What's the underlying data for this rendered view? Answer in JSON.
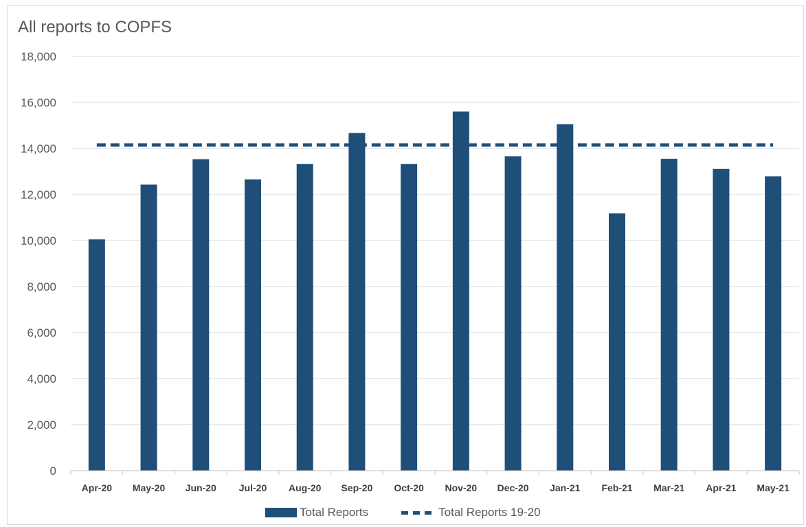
{
  "chart_data": {
    "type": "bar",
    "title": "All reports to COPFS",
    "xlabel": "",
    "ylabel": "",
    "categories": [
      "Apr-20",
      "May-20",
      "Jun-20",
      "Jul-20",
      "Aug-20",
      "Sep-20",
      "Oct-20",
      "Nov-20",
      "Dec-20",
      "Jan-21",
      "Feb-21",
      "Mar-21",
      "Apr-21",
      "May-21"
    ],
    "series": [
      {
        "name": "Total Reports",
        "type": "bar",
        "color": "#1f4e79",
        "values": [
          10050,
          12430,
          13530,
          12650,
          13320,
          14670,
          13320,
          15600,
          13660,
          15050,
          11180,
          13550,
          13110,
          12790
        ]
      },
      {
        "name": "Total Reports 19-20",
        "type": "line",
        "style": "dashed",
        "color": "#1f4e79",
        "values": [
          14150,
          14150,
          14150,
          14150,
          14150,
          14150,
          14150,
          14150,
          14150,
          14150,
          14150,
          14150,
          14150,
          14150
        ]
      }
    ],
    "ylim": [
      0,
      18000
    ],
    "yticks": [
      0,
      2000,
      4000,
      6000,
      8000,
      10000,
      12000,
      14000,
      16000,
      18000
    ],
    "ytick_labels": [
      "0",
      "2,000",
      "4,000",
      "6,000",
      "8,000",
      "10,000",
      "12,000",
      "14,000",
      "16,000",
      "18,000"
    ],
    "grid": true,
    "legend": "bottom"
  }
}
